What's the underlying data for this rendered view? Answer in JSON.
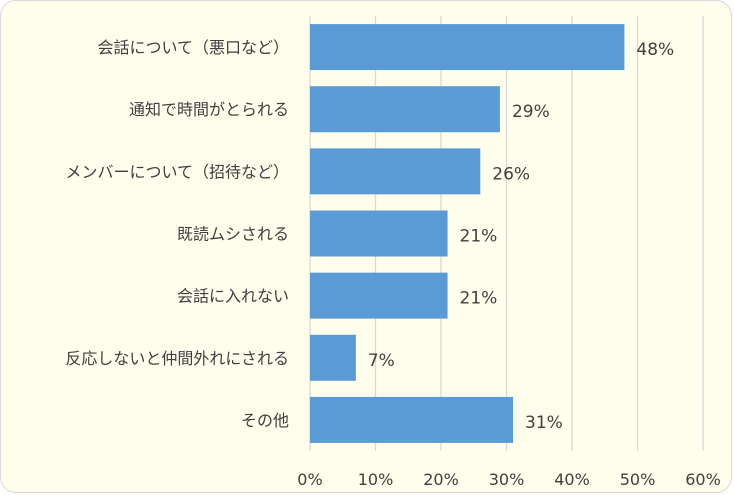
{
  "chart_data": {
    "type": "bar",
    "orientation": "horizontal",
    "categories": [
      "会話について（悪口など）",
      "通知で時間がとられる",
      "メンバーについて（招待など）",
      "既読ムシされる",
      "会話に入れない",
      "反応しないと仲間外れにされる",
      "その他"
    ],
    "values": [
      48,
      29,
      26,
      21,
      21,
      7,
      31
    ],
    "value_labels": [
      "48%",
      "29%",
      "26%",
      "21%",
      "21%",
      "7%",
      "31%"
    ],
    "xlim": [
      0,
      60
    ],
    "x_ticks": [
      0,
      10,
      20,
      30,
      40,
      50,
      60
    ],
    "x_tick_labels": [
      "0%",
      "10%",
      "20%",
      "30%",
      "40%",
      "50%",
      "60%"
    ],
    "grid": "vertical",
    "colors": {
      "bar": "#5b9bd5",
      "background": "#fffdec",
      "grid": "#d9d9d9",
      "text": "#404040"
    }
  }
}
